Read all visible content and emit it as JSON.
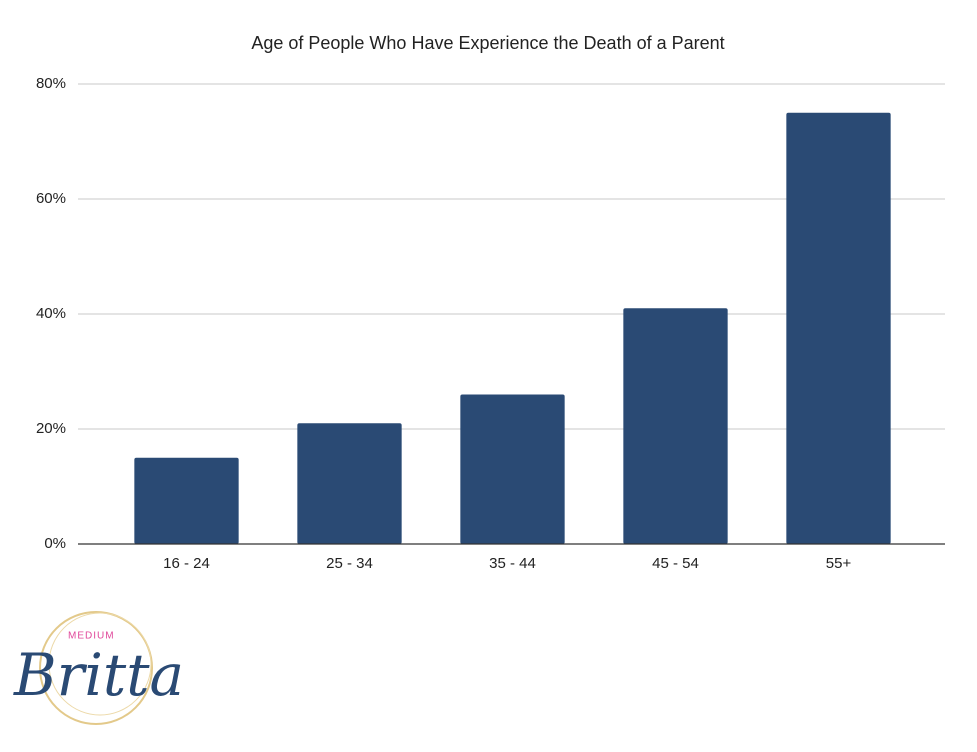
{
  "chart_data": {
    "type": "bar",
    "title": "Age of People Who Have Experience the Death of a Parent",
    "categories": [
      "16 - 24",
      "25 - 34",
      "35 - 44",
      "45 - 54",
      "55+"
    ],
    "values": [
      15,
      21,
      26,
      41,
      75
    ],
    "color": "#2a4a74",
    "ylim": [
      0,
      80
    ],
    "yticks": [
      {
        "value": 0,
        "label": "0%"
      },
      {
        "value": 20,
        "label": "20%"
      },
      {
        "value": 40,
        "label": "40%"
      },
      {
        "value": 60,
        "label": "60%"
      },
      {
        "value": 80,
        "label": "80%"
      }
    ],
    "grid": true
  },
  "logo": {
    "tag": "MEDIUM",
    "name": "Britta"
  }
}
